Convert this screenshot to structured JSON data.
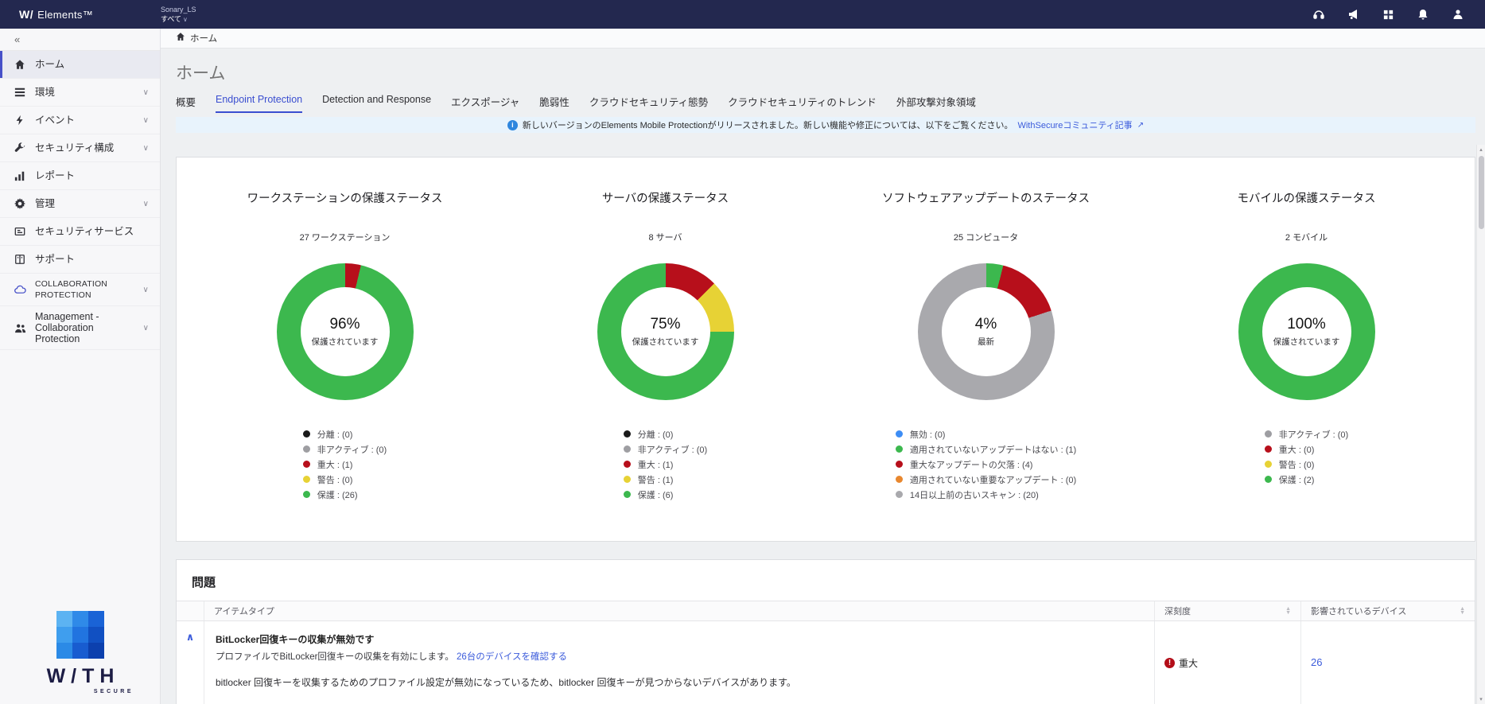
{
  "topbar": {
    "logo_primary": "W/",
    "logo_secondary": "Elements™",
    "company_name": "Sonary_LS",
    "company_scope": "すべて",
    "scope_chevron": "∨"
  },
  "sidebar": {
    "collapse": "«",
    "items": [
      {
        "label": "ホーム"
      },
      {
        "label": "環境"
      },
      {
        "label": "イベント"
      },
      {
        "label": "セキュリティ構成"
      },
      {
        "label": "レポート"
      },
      {
        "label": "管理"
      },
      {
        "label": "セキュリティサービス"
      },
      {
        "label": "サポート"
      },
      {
        "label": "COLLABORATION PROTECTION"
      },
      {
        "label": "Management - Collaboration Protection"
      }
    ],
    "chevron_glyph": "∨",
    "logo_wordmark": "W/TH",
    "logo_sub": "SECURE"
  },
  "breadcrumb": {
    "home": "ホーム"
  },
  "page": {
    "title": "ホーム"
  },
  "tabs": [
    {
      "label": "概要"
    },
    {
      "label": "Endpoint Protection"
    },
    {
      "label": "Detection and Response"
    },
    {
      "label": "エクスポージャ"
    },
    {
      "label": "脆弱性"
    },
    {
      "label": "クラウドセキュリティ態勢"
    },
    {
      "label": "クラウドセキュリティのトレンド"
    },
    {
      "label": "外部攻撃対象領域"
    }
  ],
  "banner": {
    "message": "新しいバージョンのElements Mobile Protectionがリリースされました。新しい機能や修正については、以下をご覧ください。",
    "link_label": "WithSecureコミュニティ記事",
    "external_icon": "↗"
  },
  "chart_data": [
    {
      "type": "donut",
      "title": "ワークステーションの保護ステータス",
      "subtitle": "27 ワークステーション",
      "center_value": "96%",
      "center_label": "保護されています",
      "total": 27,
      "segments": [
        {
          "label": "分離",
          "count": 0,
          "color": "#1a1a1a"
        },
        {
          "label": "非アクティブ",
          "count": 0,
          "color": "#9e9ea2"
        },
        {
          "label": "重大",
          "count": 1,
          "color": "#b70f1b"
        },
        {
          "label": "警告",
          "count": 0,
          "color": "#e7d235"
        },
        {
          "label": "保護",
          "count": 26,
          "color": "#3cb84e"
        }
      ]
    },
    {
      "type": "donut",
      "title": "サーバの保護ステータス",
      "subtitle": "8 サーバ",
      "center_value": "75%",
      "center_label": "保護されています",
      "total": 8,
      "segments": [
        {
          "label": "分離",
          "count": 0,
          "color": "#1a1a1a"
        },
        {
          "label": "非アクティブ",
          "count": 0,
          "color": "#9e9ea2"
        },
        {
          "label": "重大",
          "count": 1,
          "color": "#b70f1b"
        },
        {
          "label": "警告",
          "count": 1,
          "color": "#e7d235"
        },
        {
          "label": "保護",
          "count": 6,
          "color": "#3cb84e"
        }
      ]
    },
    {
      "type": "donut",
      "title": "ソフトウェアアップデートのステータス",
      "subtitle": "25 コンピュータ",
      "center_value": "4%",
      "center_label": "最新",
      "total": 25,
      "segments": [
        {
          "label": "無効",
          "count": 0,
          "color": "#3d8df5"
        },
        {
          "label": "適用されていないアップデートはない",
          "count": 1,
          "color": "#3cb84e"
        },
        {
          "label": "重大なアップデートの欠落",
          "count": 4,
          "color": "#b70f1b"
        },
        {
          "label": "適用されていない重要なアップデート",
          "count": 0,
          "color": "#e8872e"
        },
        {
          "label": "14日以上前の古いスキャン",
          "count": 20,
          "color": "#a9a9ad"
        }
      ]
    },
    {
      "type": "donut",
      "title": "モバイルの保護ステータス",
      "subtitle": "2 モバイル",
      "center_value": "100%",
      "center_label": "保護されています",
      "total": 2,
      "segments": [
        {
          "label": "非アクティブ",
          "count": 0,
          "color": "#9e9ea2"
        },
        {
          "label": "重大",
          "count": 0,
          "color": "#b70f1b"
        },
        {
          "label": "警告",
          "count": 0,
          "color": "#e7d235"
        },
        {
          "label": "保護",
          "count": 2,
          "color": "#3cb84e"
        }
      ]
    }
  ],
  "issues": {
    "section_title": "問題",
    "columns": [
      "アイテムタイプ",
      "深刻度",
      "影響されているデバイス"
    ],
    "rows": [
      {
        "title": "BitLocker回復キーの収集が無効です",
        "subtitle": "プロファイルでBitLocker回復キーの収集を有効にします。",
        "subtitle_link": "26台のデバイスを確認する",
        "description": "bitlocker 回復キーを収集するためのプロファイル設定が無効になっているため、bitlocker 回復キーが見つからないデバイスがあります。",
        "severity": "重大",
        "severity_icon": "!",
        "affected_devices": "26"
      }
    ]
  },
  "colors": {
    "topbar_bg": "#23284f",
    "accent_blue": "#3b5bdb",
    "protected_green": "#3cb84e",
    "critical_red": "#b70f1b",
    "warning_yellow": "#e7d235",
    "inactive_gray": "#9e9ea2"
  }
}
